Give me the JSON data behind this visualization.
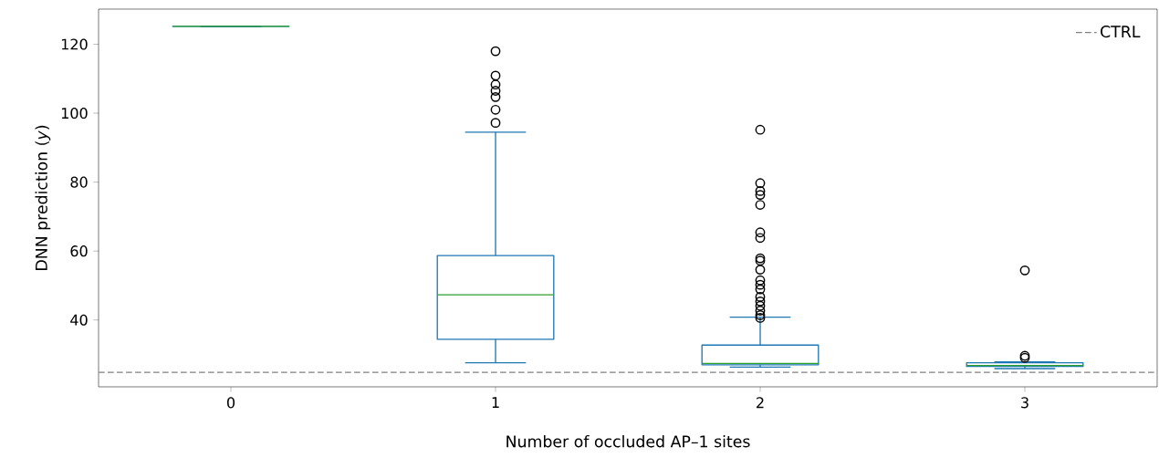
{
  "chart_data": {
    "type": "box",
    "xlabel": "Number of occluded AP–1 sites",
    "ylabel": "DNN prediction (*y*)",
    "categories": [
      "0",
      "1",
      "2",
      "3"
    ],
    "series": [
      {
        "color": "#1f77b4",
        "boxes": [
          {
            "low": 125.2,
            "q1": 125.2,
            "median": 125.2,
            "q3": 125.2,
            "high": 125.2
          },
          {
            "low": 27.6,
            "q1": 34.4,
            "median": 47.3,
            "q3": 58.7,
            "high": 94.5,
            "outliers": [
              118.0,
              110.9,
              108.3,
              106.5,
              104.7,
              101.0,
              97.2
            ]
          },
          {
            "low": 26.3,
            "q1": 27.0,
            "median": 27.4,
            "q3": 32.7,
            "high": 40.8,
            "outliers": [
              95.2,
              79.7,
              77.4,
              76.3,
              73.4,
              65.4,
              63.8,
              57.9,
              57.2,
              54.6,
              51.5,
              50.2,
              48.9,
              46.7,
              45.4,
              44.1,
              42.7,
              41.4,
              40.6
            ]
          },
          {
            "low": 25.9,
            "q1": 26.5,
            "median": 26.8,
            "q3": 27.6,
            "high": 27.8,
            "outliers": [
              54.4,
              29.6,
              29.0
            ]
          }
        ]
      }
    ],
    "ref_lines": [
      {
        "axis": "y",
        "value": 24.8,
        "label": "CTRL",
        "color": "#808080",
        "line_style": "dashed"
      }
    ],
    "ylim": [
      20.6,
      130.2
    ],
    "yticks": [
      40,
      60,
      80,
      100,
      120
    ],
    "legend": "top right",
    "marker": "circle"
  }
}
